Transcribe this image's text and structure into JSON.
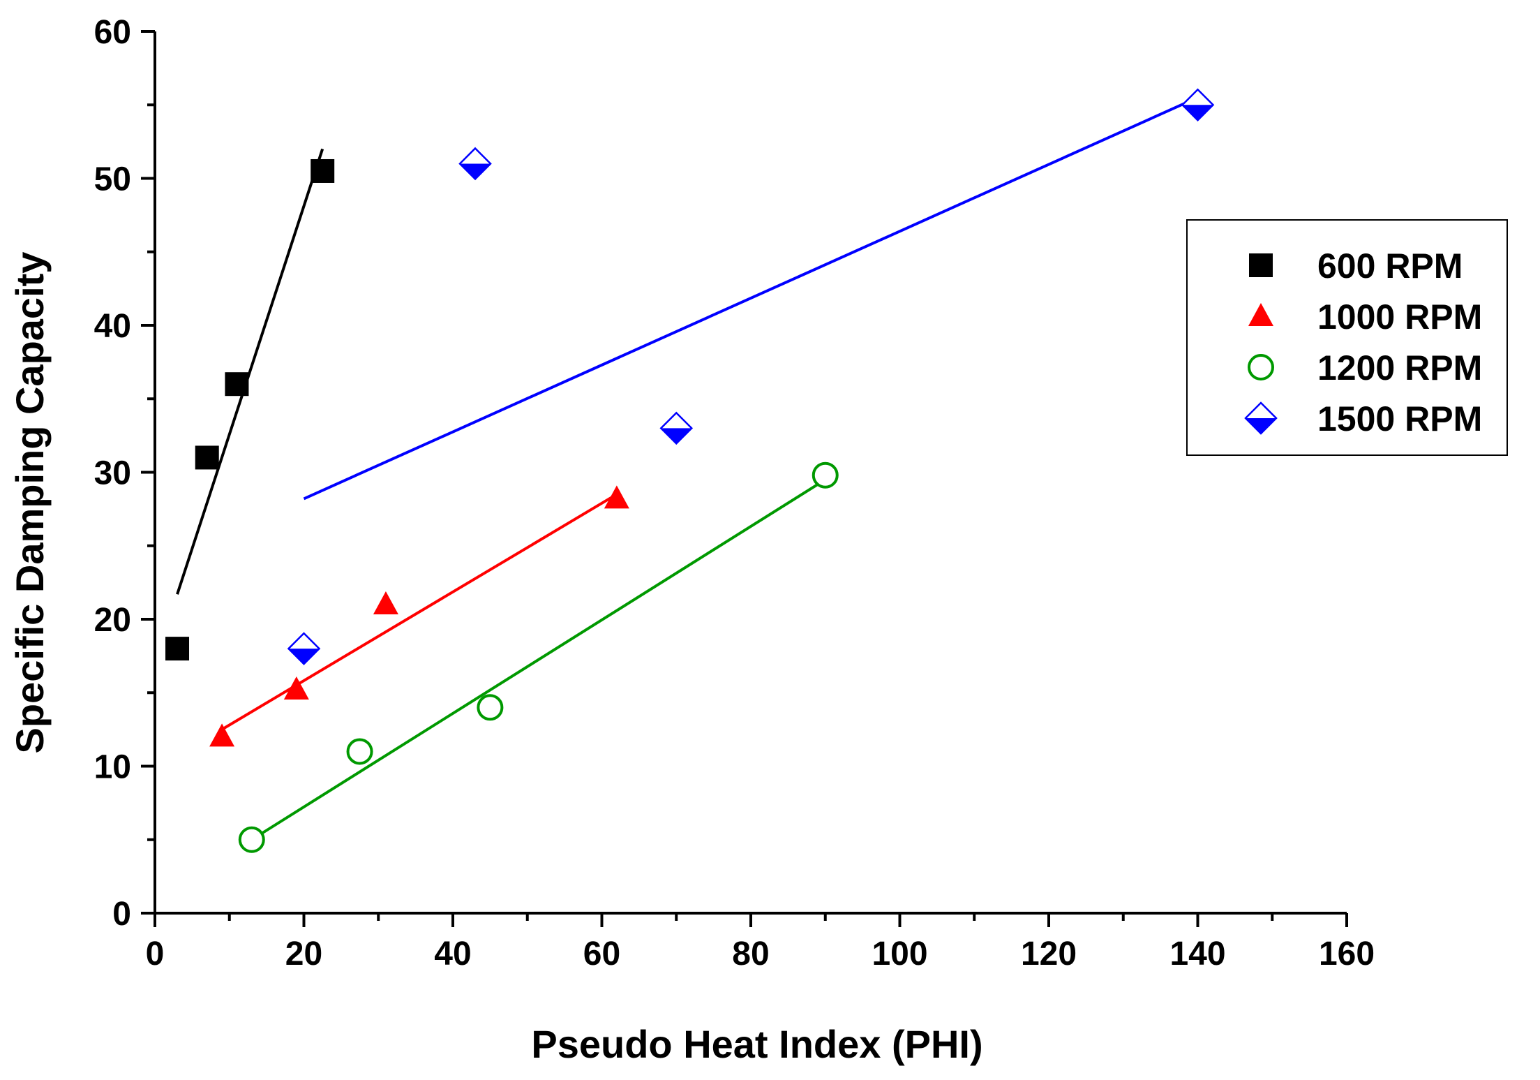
{
  "chart_data": {
    "type": "scatter",
    "title": "",
    "xlabel": "Pseudo Heat Index (PHI)",
    "ylabel": "Specific Damping Capacity",
    "xlim": [
      0,
      160
    ],
    "ylim": [
      0,
      60
    ],
    "xticks": [
      0,
      20,
      40,
      60,
      80,
      100,
      120,
      140,
      160
    ],
    "yticks": [
      0,
      10,
      20,
      30,
      40,
      50,
      60
    ],
    "xtick_labels": [
      "0",
      "20",
      "40",
      "60",
      "80",
      "100",
      "120",
      "140",
      "160"
    ],
    "ytick_labels": [
      "0",
      "10",
      "20",
      "30",
      "40",
      "50",
      "60"
    ],
    "grid": false,
    "legend_position": "right",
    "series": [
      {
        "name": "600 RPM",
        "marker": "square",
        "color": "#000000",
        "points": [
          [
            3,
            18
          ],
          [
            7,
            31
          ],
          [
            11,
            36
          ],
          [
            22.5,
            50.5
          ]
        ],
        "fit_line": [
          [
            3,
            21.7
          ],
          [
            22.5,
            52
          ]
        ]
      },
      {
        "name": "1000 RPM",
        "marker": "triangle",
        "color": "#ff0000",
        "points": [
          [
            9,
            12
          ],
          [
            19,
            15.2
          ],
          [
            31,
            21
          ],
          [
            62,
            28.2
          ]
        ],
        "fit_line": [
          [
            9,
            12.5
          ],
          [
            62,
            28.5
          ]
        ]
      },
      {
        "name": "1200 RPM",
        "marker": "circle-open",
        "color": "#009900",
        "points": [
          [
            13,
            5
          ],
          [
            27.5,
            11
          ],
          [
            45,
            14
          ],
          [
            90,
            29.8
          ]
        ],
        "fit_line": [
          [
            13,
            5
          ],
          [
            90,
            29.5
          ]
        ]
      },
      {
        "name": "1500 RPM",
        "marker": "diamond-half",
        "color": "#0000ff",
        "points": [
          [
            20,
            18
          ],
          [
            43,
            51
          ],
          [
            70,
            33
          ],
          [
            140,
            55
          ]
        ],
        "fit_line": [
          [
            20,
            28.2
          ],
          [
            140,
            55.5
          ]
        ]
      }
    ]
  }
}
